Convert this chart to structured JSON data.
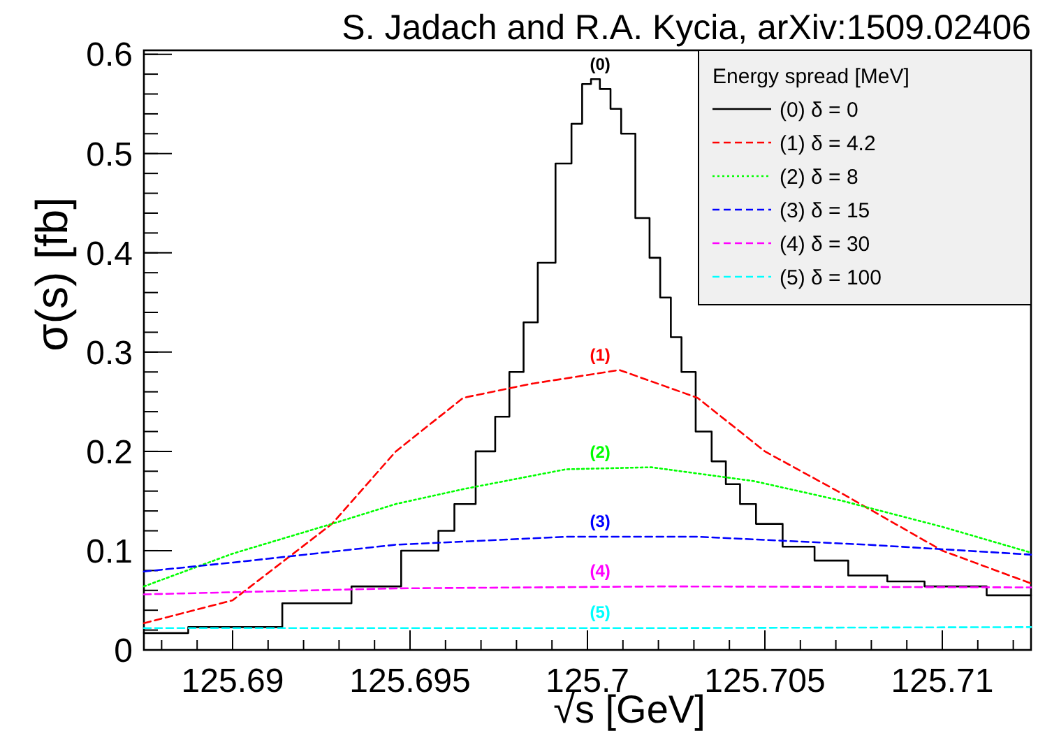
{
  "chart_data": {
    "type": "line",
    "title": "S. Jadach and R.A. Kycia, arXiv:1509.02406",
    "xlabel": "√s   [GeV]",
    "ylabel": "σ(s) [fb]",
    "legend_title": "Energy spread [MeV]",
    "legend": "top right",
    "grid": false,
    "marker": "none",
    "xlim": [
      125.6875,
      125.7125
    ],
    "ylim": [
      0,
      0.604
    ],
    "xticks": [
      125.69,
      125.695,
      125.7,
      125.705,
      125.71
    ],
    "yticks": [
      0,
      0.1,
      0.2,
      0.3,
      0.4,
      0.5,
      0.6
    ],
    "series": [
      {
        "name": "(0) δ = 0",
        "type": "step",
        "color": "#000000",
        "line_style": "solid",
        "x": [
          125.6875,
          125.69,
          125.6928,
          125.6939,
          125.6956,
          125.696,
          125.6965,
          125.6972,
          125.6976,
          125.698,
          125.6984,
          125.6988,
          125.6994,
          125.6997,
          125.7,
          125.7002,
          125.7005,
          125.7008,
          125.7011,
          125.7016,
          125.7019,
          125.7022,
          125.7025,
          125.7028,
          125.7033,
          125.7037,
          125.7041,
          125.7045,
          125.705,
          125.706,
          125.7068,
          125.7079,
          125.709,
          125.71,
          125.7125
        ],
        "values": [
          0.017,
          0.023,
          0.047,
          0.064,
          0.1,
          0.12,
          0.147,
          0.2,
          0.235,
          0.28,
          0.33,
          0.39,
          0.49,
          0.53,
          0.57,
          0.575,
          0.565,
          0.545,
          0.52,
          0.435,
          0.395,
          0.355,
          0.315,
          0.28,
          0.22,
          0.19,
          0.167,
          0.147,
          0.127,
          0.104,
          0.09,
          0.075,
          0.069,
          0.064,
          0.055
        ]
      },
      {
        "name": "(1) δ = 4.2",
        "color": "#ff0000",
        "line_style": "dashed",
        "x": [
          125.6875,
          125.69,
          125.6928,
          125.6946,
          125.6965,
          125.6984,
          125.7009,
          125.7031,
          125.705,
          125.7072,
          125.71,
          125.7125
        ],
        "values": [
          0.027,
          0.05,
          0.127,
          0.2,
          0.254,
          0.268,
          0.282,
          0.254,
          0.2,
          0.157,
          0.1,
          0.067
        ]
      },
      {
        "name": "(2) δ = 8",
        "color": "#00ff00",
        "line_style": "dotted",
        "x": [
          125.6875,
          125.69,
          125.6928,
          125.6946,
          125.6965,
          125.6994,
          125.7018,
          125.7047,
          125.7072,
          125.71,
          125.7125
        ],
        "values": [
          0.064,
          0.097,
          0.127,
          0.147,
          0.162,
          0.182,
          0.184,
          0.17,
          0.15,
          0.124,
          0.098
        ]
      },
      {
        "name": "(3) δ = 15",
        "color": "#0000ff",
        "line_style": "dashed",
        "x": [
          125.6875,
          125.69,
          125.6946,
          125.6994,
          125.7031,
          125.7079,
          125.7125
        ],
        "values": [
          0.079,
          0.088,
          0.106,
          0.114,
          0.114,
          0.106,
          0.096
        ]
      },
      {
        "name": "(4) δ = 30",
        "color": "#ff00ff",
        "line_style": "dashed",
        "x": [
          125.6875,
          125.6946,
          125.7022,
          125.7125
        ],
        "values": [
          0.056,
          0.062,
          0.064,
          0.063
        ]
      },
      {
        "name": "(5) δ = 100",
        "color": "#00ffff",
        "line_style": "dashed",
        "x": [
          125.6875,
          125.7022,
          125.7125
        ],
        "values": [
          0.022,
          0.022,
          0.023
        ]
      }
    ],
    "annotations": [
      "(0)",
      "(1)",
      "(2)",
      "(3)",
      "(4)",
      "(5)"
    ]
  }
}
